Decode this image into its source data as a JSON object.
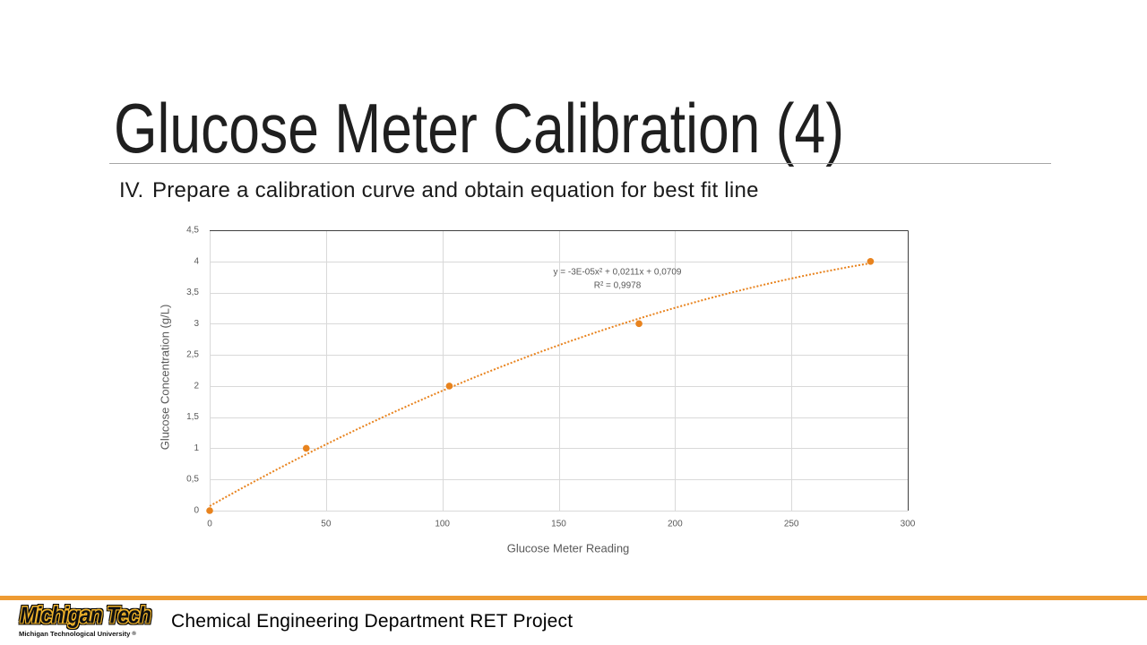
{
  "slide": {
    "title": "Glucose Meter Calibration (4)",
    "step_number": "IV.",
    "step_text": "Prepare a calibration curve and obtain equation for best fit line"
  },
  "footer": {
    "logo_wordmark": "Michigan Tech",
    "logo_subtitle": "Michigan Technological University",
    "logo_registered": "®",
    "text": "Chemical Engineering Department RET Project"
  },
  "colors": {
    "accent": "#E8831E",
    "footer_rule": "#EE9B32",
    "logo_gold": "#F2B52C",
    "gridline": "#D9D9D9",
    "plot_border": "#404040",
    "axis_text": "#595959"
  },
  "chart_data": {
    "type": "scatter",
    "xlabel": "Glucose Meter Reading",
    "ylabel": "Glucose Concentration (g/L)",
    "xlim": [
      0,
      300
    ],
    "ylim": [
      0,
      4.5
    ],
    "x_ticks": [
      0,
      50,
      100,
      150,
      200,
      250,
      300
    ],
    "x_tick_labels": [
      "0",
      "50",
      "100",
      "150",
      "200",
      "250",
      "300"
    ],
    "y_ticks": [
      0,
      0.5,
      1,
      1.5,
      2,
      2.5,
      3,
      3.5,
      4,
      4.5
    ],
    "y_tick_labels": [
      "0",
      "0,5",
      "1",
      "1,5",
      "2",
      "2,5",
      "3",
      "3,5",
      "4",
      "4,5"
    ],
    "grid": true,
    "series": [
      {
        "x": [
          0,
          41.5,
          103,
          184.5,
          284
        ],
        "y": [
          0,
          1,
          2,
          3,
          4
        ]
      }
    ],
    "trendline": {
      "type": "polynomial",
      "order": 2,
      "equation": "y = -3E-05x² + 0,0211x + 0,0709",
      "r_squared": "R² = 0,9978"
    }
  }
}
